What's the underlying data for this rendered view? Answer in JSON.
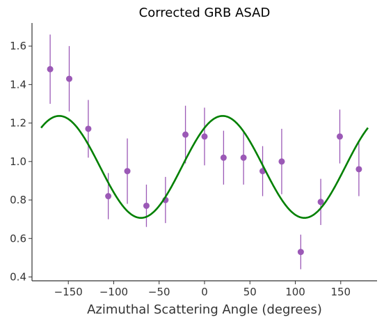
{
  "chart_data": {
    "type": "scatter",
    "title": "Corrected GRB ASAD",
    "xlabel": "Azimuthal Scattering Angle (degrees)",
    "ylabel": "",
    "xlim": [
      -190,
      190
    ],
    "ylim": [
      0.38,
      1.72
    ],
    "xticks": [
      -150,
      -100,
      -50,
      0,
      50,
      100,
      150
    ],
    "yticks": [
      0.4,
      0.6,
      0.8,
      1.0,
      1.2,
      1.4,
      1.6
    ],
    "xtick_labels": [
      "−150",
      "−100",
      "−50",
      "0",
      "50",
      "100",
      "150"
    ],
    "ytick_labels": [
      "0.4",
      "0.6",
      "0.8",
      "1.0",
      "1.2",
      "1.4",
      "1.6"
    ],
    "grid": false,
    "series": [
      {
        "kind": "errorbar",
        "color": "#9b59b6",
        "x": [
          -170,
          -149,
          -128,
          -106,
          -85,
          -64,
          -43,
          -21,
          0,
          21,
          43,
          64,
          85,
          106,
          128,
          149,
          170
        ],
        "y": [
          1.48,
          1.43,
          1.17,
          0.82,
          0.95,
          0.77,
          0.8,
          1.14,
          1.13,
          1.02,
          1.02,
          0.95,
          1.0,
          0.53,
          0.79,
          1.13,
          0.96
        ],
        "yerr": [
          0.18,
          0.17,
          0.15,
          0.12,
          0.17,
          0.11,
          0.12,
          0.15,
          0.15,
          0.14,
          0.14,
          0.13,
          0.17,
          0.09,
          0.12,
          0.14,
          0.14
        ]
      },
      {
        "kind": "line",
        "color": "#008000",
        "function": "sinusoid",
        "x_range": [
          -180,
          180
        ],
        "offset": 0.972,
        "amplitude": 0.265,
        "frequency": 2,
        "phase_deg": 20
      }
    ]
  }
}
